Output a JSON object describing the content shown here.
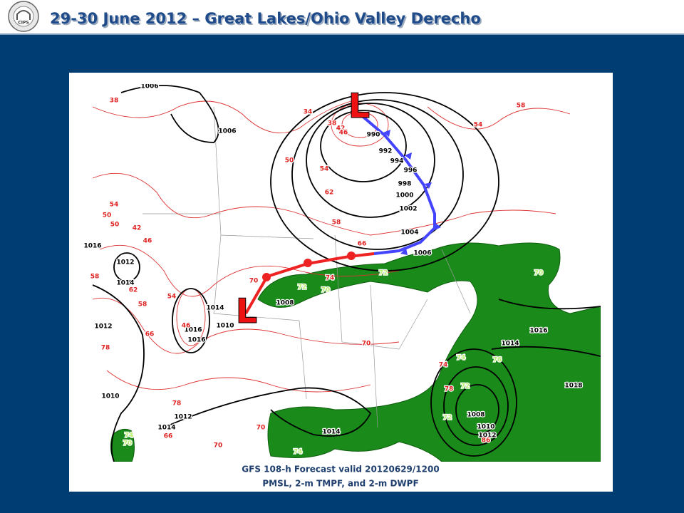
{
  "header": {
    "title": "29-30 June 2012 – Great Lakes/Ohio Valley Derecho",
    "logo_text": "CIPS"
  },
  "map": {
    "lows": [
      "L",
      "L"
    ],
    "isobar_labels": [
      "1006",
      "1006",
      "990",
      "992",
      "994",
      "996",
      "998",
      "1000",
      "1002",
      "1004",
      "1006",
      "1016",
      "1012",
      "1014",
      "1014",
      "1010",
      "1008",
      "1016",
      "1016",
      "1012",
      "1010",
      "1012",
      "1014",
      "1014",
      "1016",
      "1014",
      "1018",
      "1008",
      "1010",
      "1012"
    ],
    "temperature_labels": [
      "38",
      "34",
      "38",
      "42",
      "46",
      "50",
      "54",
      "62",
      "54",
      "50",
      "50",
      "42",
      "46",
      "58",
      "62",
      "54",
      "58",
      "46",
      "66",
      "70",
      "74",
      "70",
      "78",
      "78",
      "66",
      "70",
      "70",
      "58",
      "66",
      "58",
      "54",
      "74",
      "78",
      "86"
    ],
    "dewpoint_labels": [
      "72",
      "70",
      "72",
      "70",
      "76",
      "74",
      "72",
      "72",
      "74",
      "74",
      "70"
    ]
  },
  "caption": {
    "line1": "GFS 108-h Forecast valid 20120629/1200",
    "line2": "PMSL, 2-m TMPF, and 2-m DWPF"
  }
}
